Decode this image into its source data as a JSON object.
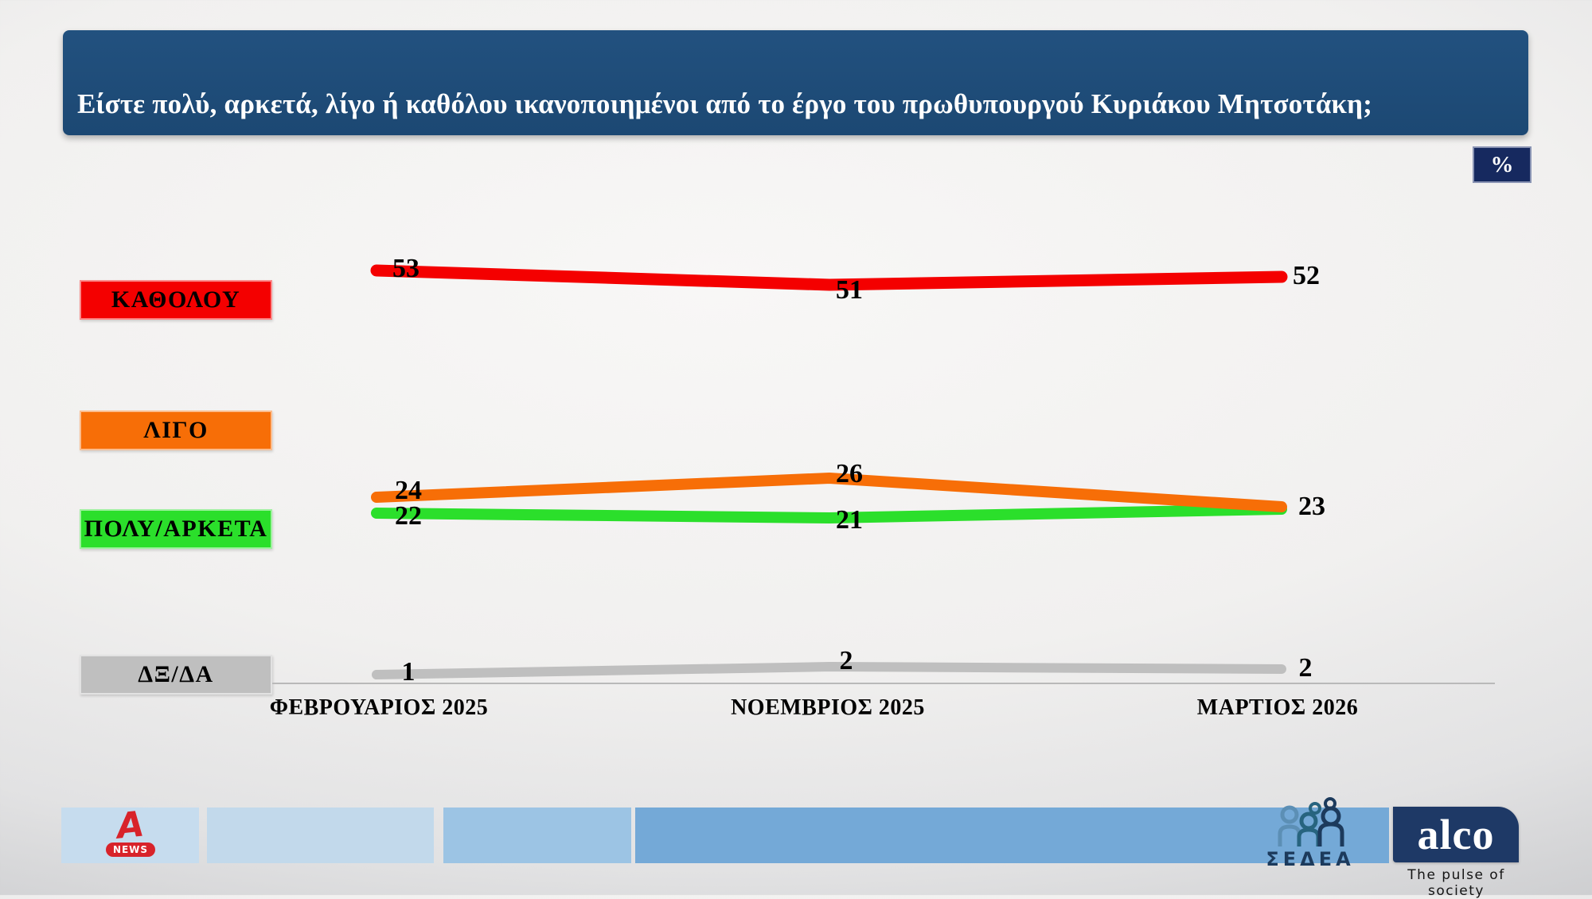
{
  "slide": {
    "title": "Είστε πολύ, αρκετά, λίγο ή καθόλου ικανοποιημένοι από το έργο του πρωθυπουργού Κυριάκου Μητσοτάκη;",
    "unit_badge": "%"
  },
  "chart_data": {
    "type": "line",
    "title": "Είστε πολύ, αρκετά, λίγο ή καθόλου ικανοποιημένοι από το έργο του πρωθυπουργού Κυριάκου Μητσοτάκη;",
    "unit": "%",
    "categories": [
      "ΦΕΒΡΟΥΑΡΙΟΣ 2025",
      "ΝΟΕΜΒΡΙΟΣ 2025",
      "ΜΑΡΤΙΟΣ 2026"
    ],
    "series": [
      {
        "name": "ΚΑΘΟΛΟΥ",
        "color": "#f40000",
        "values": [
          53,
          51,
          52
        ]
      },
      {
        "name": "ΛΙΓΟ",
        "color": "#f76e07",
        "values": [
          24,
          26,
          23
        ]
      },
      {
        "name": "ΠΟΛΥ/ΑΡΚΕΤΑ",
        "color": "#2bdf2b",
        "values": [
          22,
          21,
          23
        ]
      },
      {
        "name": "ΔΞ/ΔΑ",
        "color": "#bfbfbf",
        "values": [
          1,
          2,
          2
        ]
      }
    ],
    "legend_position": "left",
    "grid": false,
    "ylim": [
      0,
      60
    ]
  },
  "footer": {
    "alpha_news": {
      "letter": "A",
      "badge": "NEWS"
    },
    "sedea": {
      "label": "ΣΕΔΕΑ"
    },
    "alco": {
      "brand": "alco",
      "tagline": "The pulse of society"
    }
  }
}
